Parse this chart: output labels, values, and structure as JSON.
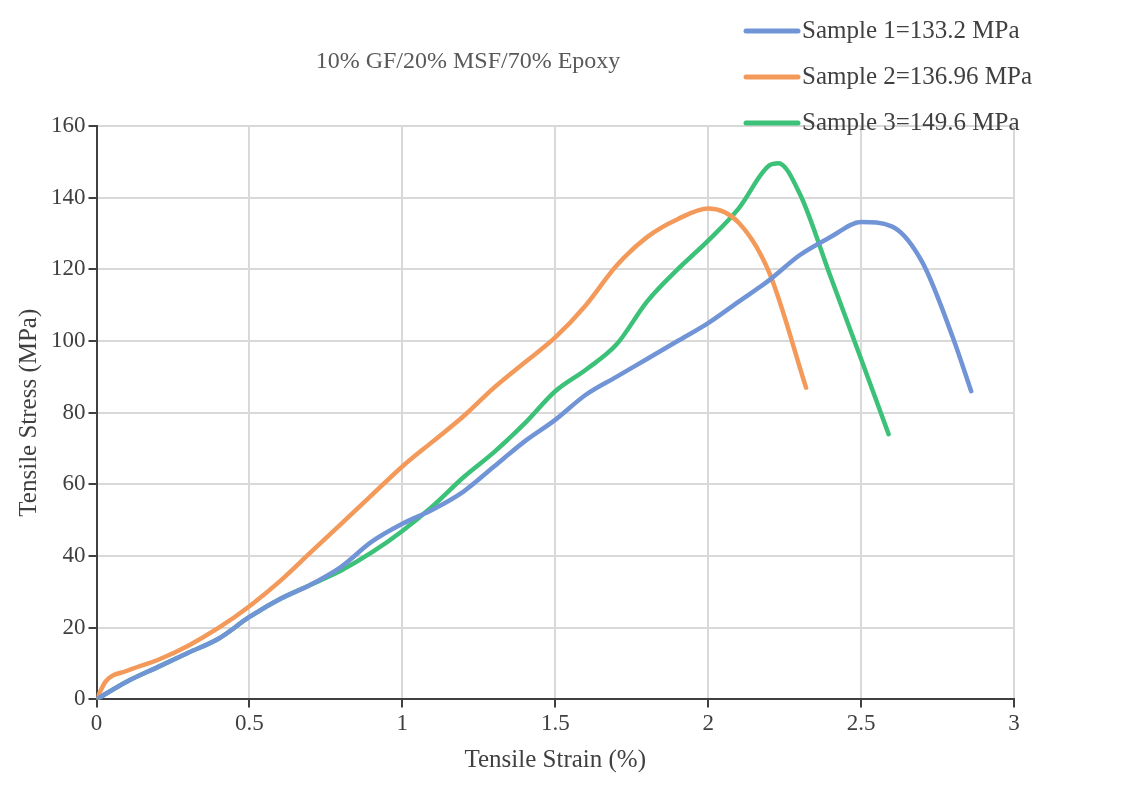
{
  "chart_data": {
    "type": "line",
    "title": "10% GF/20% MSF/70% Epoxy",
    "xlabel": "Tensile Strain (%)",
    "ylabel": "Tensile Stress (MPa)",
    "xlim": [
      0,
      3
    ],
    "xticks": [
      0,
      0.5,
      1,
      1.5,
      2,
      2.5,
      3
    ],
    "ylim": [
      0,
      160
    ],
    "yticks": [
      0,
      20,
      40,
      60,
      80,
      100,
      120,
      140,
      160
    ],
    "grid": true,
    "legend": "top right",
    "marker": "none",
    "line_style": "solid",
    "series": [
      {
        "name": "Sample 1=133.2 MPa",
        "color": "#7094d6",
        "x": [
          0,
          0.1,
          0.2,
          0.3,
          0.4,
          0.5,
          0.6,
          0.7,
          0.8,
          0.9,
          1.0,
          1.1,
          1.2,
          1.3,
          1.4,
          1.5,
          1.6,
          1.7,
          1.8,
          1.9,
          2.0,
          2.1,
          2.2,
          2.3,
          2.4,
          2.5,
          2.6,
          2.7,
          2.8,
          2.86
        ],
        "values": [
          0,
          5,
          9,
          13,
          17,
          23,
          28,
          32,
          37,
          44,
          49,
          53,
          58,
          65,
          72,
          78,
          85,
          90,
          95,
          100,
          105,
          111,
          117,
          124,
          129,
          133.2,
          132,
          122,
          101,
          86
        ]
      },
      {
        "name": "Sample 2=136.96 MPa",
        "color": "#f39a5b",
        "x": [
          0,
          0.03,
          0.1,
          0.2,
          0.3,
          0.4,
          0.5,
          0.6,
          0.7,
          0.8,
          0.9,
          1.0,
          1.1,
          1.2,
          1.3,
          1.4,
          1.5,
          1.6,
          1.7,
          1.8,
          1.9,
          2.0,
          2.1,
          2.2,
          2.32
        ],
        "values": [
          0,
          5,
          8,
          11,
          15,
          20,
          26,
          33,
          41,
          49,
          57,
          65,
          72,
          79,
          87,
          94,
          101,
          110,
          121,
          129,
          134,
          136.96,
          133,
          119,
          87
        ]
      },
      {
        "name": "Sample 3=149.6 MPa",
        "color": "#3cc178",
        "x": [
          0,
          0.1,
          0.2,
          0.3,
          0.4,
          0.5,
          0.6,
          0.7,
          0.8,
          0.9,
          1.0,
          1.1,
          1.2,
          1.3,
          1.4,
          1.5,
          1.6,
          1.7,
          1.8,
          1.9,
          2.0,
          2.1,
          2.2,
          2.23,
          2.3,
          2.4,
          2.5,
          2.59
        ],
        "values": [
          0,
          5,
          9,
          13,
          17,
          23,
          28,
          32,
          36,
          41,
          47,
          54,
          62,
          69,
          77,
          86,
          92,
          99,
          111,
          120,
          128,
          137,
          149,
          149.6,
          141,
          118,
          95,
          74
        ]
      }
    ]
  }
}
